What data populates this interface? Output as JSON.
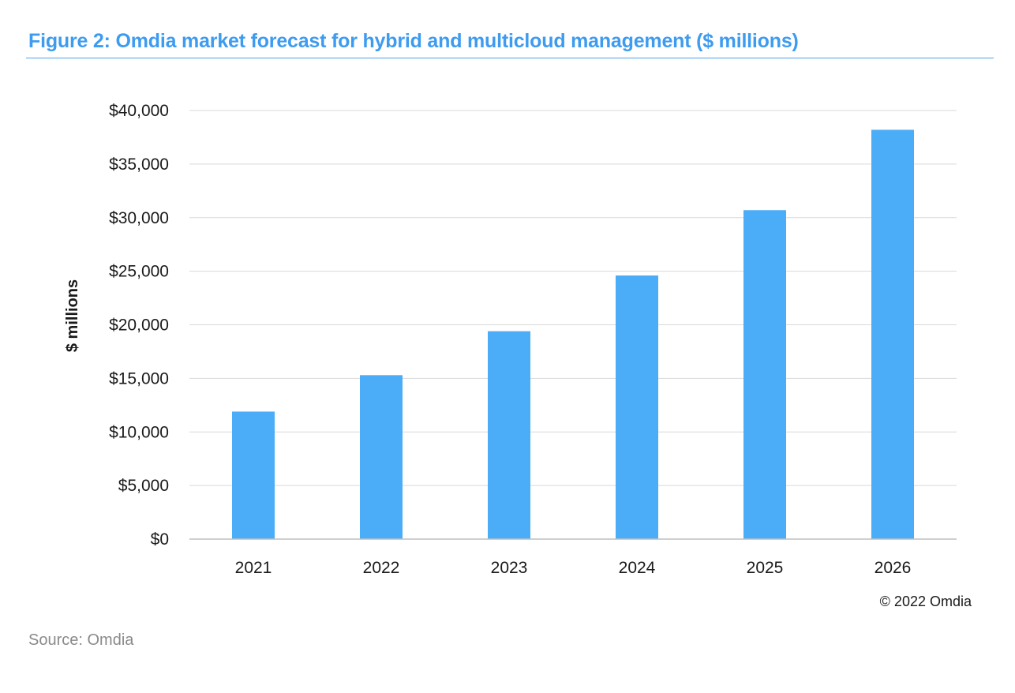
{
  "figure": {
    "title": "Figure 2: Omdia market forecast for hybrid and multicloud management ($ millions)",
    "copyright": "© 2022 Omdia",
    "source": "Source: Omdia",
    "accent_color": "#3d9bf0"
  },
  "chart_data": {
    "type": "bar",
    "categories": [
      "2021",
      "2022",
      "2023",
      "2024",
      "2025",
      "2026"
    ],
    "values": [
      11900,
      15300,
      19400,
      24600,
      30700,
      38200
    ],
    "title": "",
    "xlabel": "",
    "ylabel": "$ millions",
    "ylim": [
      0,
      40000
    ],
    "yticks": [
      0,
      5000,
      10000,
      15000,
      20000,
      25000,
      30000,
      35000,
      40000
    ],
    "ytick_labels": [
      "$0",
      "$5,000",
      "$10,000",
      "$15,000",
      "$20,000",
      "$25,000",
      "$30,000",
      "$35,000",
      "$40,000"
    ],
    "grid": true,
    "legend": "none",
    "bar_color": "#4badf7",
    "grid_color": "#d9d9d9"
  }
}
